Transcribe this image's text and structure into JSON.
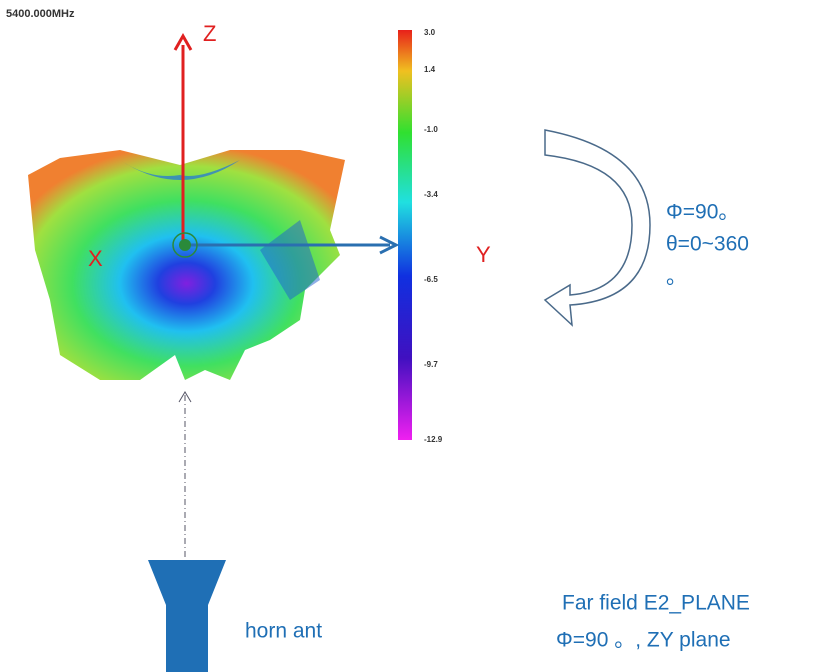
{
  "header": {
    "frequency": "5400.000MHz"
  },
  "axes": {
    "z": "Z",
    "x": "X",
    "y": "Y"
  },
  "colorbar": {
    "labels": [
      "3.0",
      "1.4",
      "-1.0",
      "-3.4",
      "-6.5",
      "-9.7",
      "-12.9"
    ]
  },
  "rotation": {
    "lines": [
      "Φ=90。",
      "θ=0~360",
      "。"
    ]
  },
  "source": {
    "label": "horn ant"
  },
  "caption": {
    "lines": [
      "Far field  E2_PLANE",
      "Φ=90 。, ZY plane"
    ]
  }
}
